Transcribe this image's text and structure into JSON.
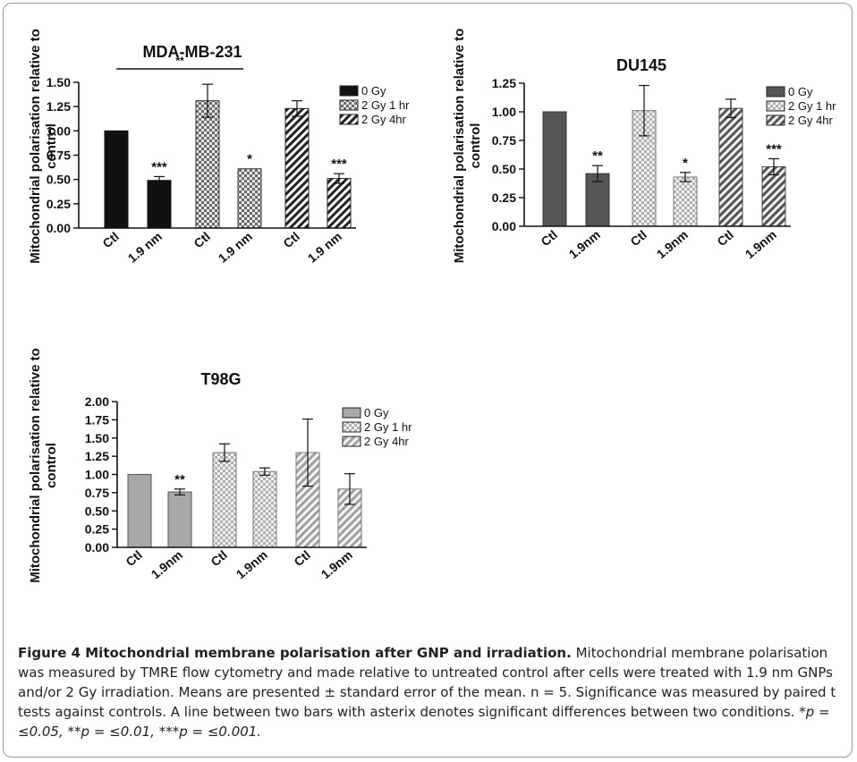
{
  "caption": {
    "title": "Figure 4 Mitochondrial membrane polarisation after GNP and irradiation.",
    "body": "Mitochondrial membrane polarisation was measured by TMRE flow cytometry and made relative to untreated control after cells were treated with 1.9 nm GNPs and/or 2 Gy irradiation. Means are presented ± standard error of the mean. n = 5. Significance was measured by paired t tests against controls. A line between two bars with asterix denotes significant differences between two conditions.",
    "sig1": "*p = ≤0.05,",
    "sig2": "**p = ≤0.01,",
    "sig3": "***p = ≤0.001."
  },
  "chart_data": [
    {
      "type": "bar",
      "title": "MDA-MB-231",
      "ylabel": "Mitochondrial polarisation relative to control",
      "ylim": [
        0,
        1.5
      ],
      "yticks": [
        "0.00",
        "0.25",
        "0.50",
        "0.75",
        "1.00",
        "1.25",
        "1.50"
      ],
      "categories": [
        "Ctl",
        "1.9 nm",
        "Ctl",
        "1.9 nm",
        "Ctl",
        "1.9 nm"
      ],
      "values": [
        1.0,
        0.49,
        1.31,
        0.61,
        1.23,
        0.51
      ],
      "errors": [
        0,
        0.04,
        0.17,
        0,
        0.08,
        0.05
      ],
      "bar_groups": [
        "0 Gy",
        "0 Gy",
        "2 Gy 1 hr",
        "2 Gy 1 hr",
        "2 Gy 4hr",
        "2 Gy 4hr"
      ],
      "significance": [
        "",
        "***",
        "",
        "*",
        "",
        "***"
      ],
      "bracket": {
        "from_bar": 0,
        "to_bar": 2,
        "label": "**"
      },
      "legend": [
        "0 Gy",
        "2 Gy 1 hr",
        "2 Gy 4hr"
      ],
      "legend_position": "right"
    },
    {
      "type": "bar",
      "title": "DU145",
      "ylabel": "Mitochondrial polarisation relative to control",
      "ylim": [
        0,
        1.25
      ],
      "yticks": [
        "0.00",
        "0.25",
        "0.50",
        "0.75",
        "1.00",
        "1.25"
      ],
      "categories": [
        "Ctl",
        "1.9nm",
        "Ctl",
        "1.9nm",
        "Ctl",
        "1.9nm"
      ],
      "values": [
        1.0,
        0.46,
        1.01,
        0.43,
        1.03,
        0.52
      ],
      "errors": [
        0,
        0.07,
        0.22,
        0.04,
        0.08,
        0.07
      ],
      "bar_groups": [
        "0 Gy",
        "0 Gy",
        "2 Gy 1 hr",
        "2 Gy 1 hr",
        "2 Gy 4hr",
        "2 Gy 4hr"
      ],
      "significance": [
        "",
        "**",
        "",
        "*",
        "",
        "***"
      ],
      "legend": [
        "0 Gy",
        "2 Gy 1 hr",
        "2 Gy 4hr"
      ],
      "legend_position": "right"
    },
    {
      "type": "bar",
      "title": "T98G",
      "ylabel": "Mitochondrial polarisation relative to control",
      "ylim": [
        0,
        2.0
      ],
      "yticks": [
        "0.00",
        "0.25",
        "0.50",
        "0.75",
        "1.00",
        "1.25",
        "1.50",
        "1.75",
        "2.00"
      ],
      "categories": [
        "Ctl",
        "1.9nm",
        "Ctl",
        "1.9nm",
        "Ctl",
        "1.9nm"
      ],
      "values": [
        1.0,
        0.76,
        1.3,
        1.04,
        1.3,
        0.8
      ],
      "errors": [
        0,
        0.04,
        0.12,
        0.05,
        0.46,
        0.21
      ],
      "bar_groups": [
        "0 Gy",
        "0 Gy",
        "2 Gy 1 hr",
        "2 Gy 1 hr",
        "2 Gy 4hr",
        "2 Gy 4hr"
      ],
      "significance": [
        "",
        "**",
        "",
        "",
        "",
        ""
      ],
      "legend": [
        "0 Gy",
        "2 Gy 1 hr",
        "2 Gy 4hr"
      ],
      "legend_position": "right"
    }
  ]
}
